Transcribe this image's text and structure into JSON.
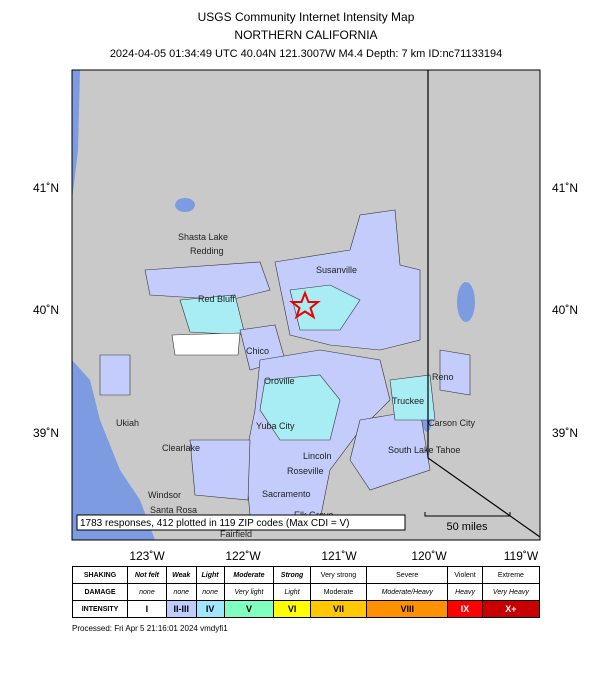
{
  "header": {
    "title": "USGS Community Internet Intensity Map",
    "region": "NORTHERN CALIFORNIA",
    "event": "2024-04-05 01:34:49 UTC 40.04N 121.3007W M4.4 Depth: 7 km ID:nc71133194"
  },
  "map": {
    "lon_ticks": [
      "123˚W",
      "122˚W",
      "121˚W",
      "120˚W",
      "119˚W"
    ],
    "lat_ticks": [
      "41˚N",
      "40˚N",
      "39˚N"
    ],
    "places": [
      "Shasta Lake",
      "Redding",
      "Red Bluff",
      "Chico",
      "Oroville",
      "Susanville",
      "Ukiah",
      "Clearlake",
      "Yuba City",
      "Lincoln",
      "Roseville",
      "Sacramento",
      "Windsor",
      "Santa Rosa",
      "Fairfield",
      "Elk Grove",
      "Truckee",
      "Reno",
      "Carson City",
      "South Lake Tahoe"
    ],
    "note": "1783 responses, 412 plotted in 119 ZIP codes (Max CDI = V)",
    "scale": "50 miles"
  },
  "legend": {
    "row_labels": [
      "SHAKING",
      "DAMAGE",
      "INTENSITY"
    ],
    "shaking": [
      "Not felt",
      "Weak",
      "Light",
      "Moderate",
      "Strong",
      "Very strong",
      "Severe",
      "Violent",
      "Extreme"
    ],
    "damage": [
      "none",
      "none",
      "none",
      "Very light",
      "Light",
      "Moderate",
      "Moderate/Heavy",
      "Heavy",
      "Very Heavy"
    ],
    "intensity": [
      "I",
      "II-III",
      "IV",
      "V",
      "VI",
      "VII",
      "VIII",
      "IX",
      "X+"
    ]
  },
  "footer": "Processed: Fri Apr  5 21:16:01 2024 vmdyfi1"
}
